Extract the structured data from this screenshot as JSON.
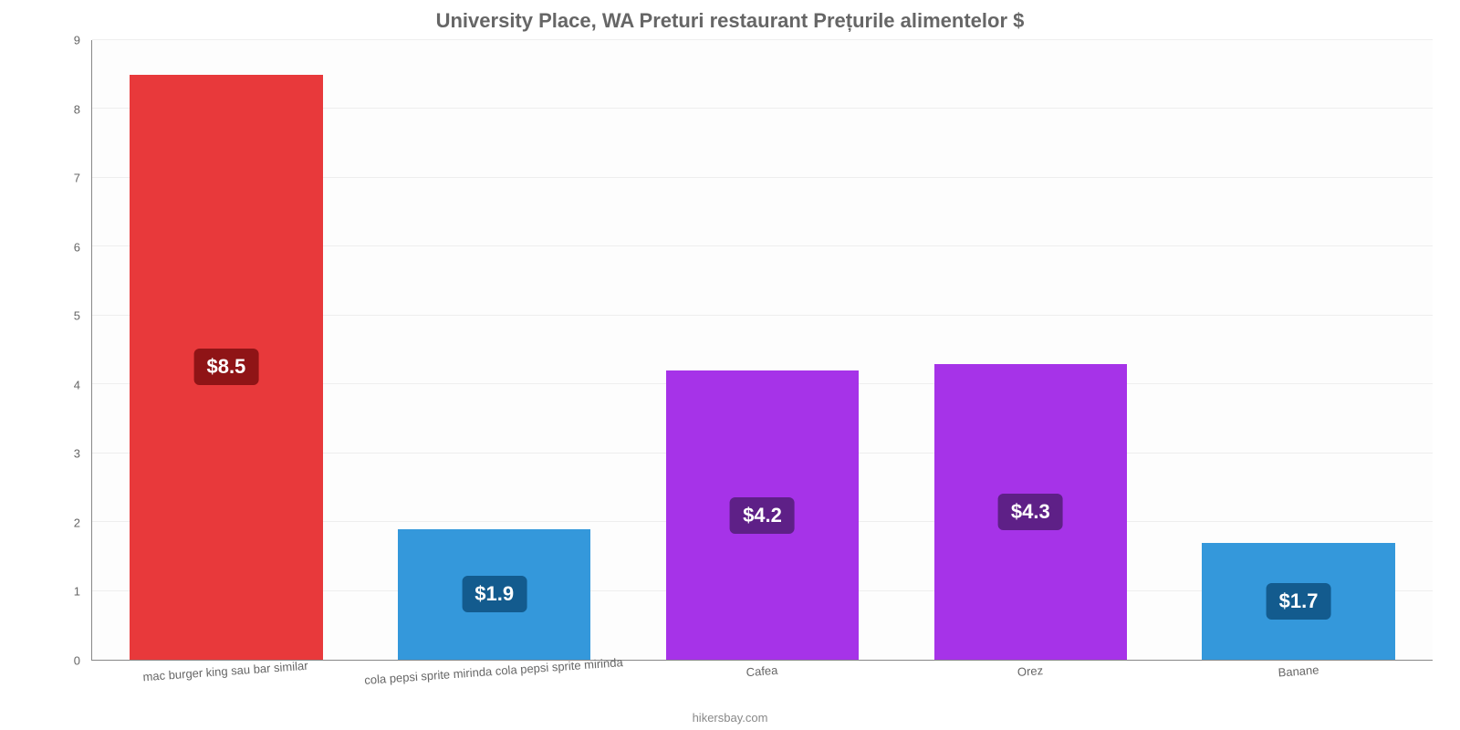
{
  "chart": {
    "type": "bar",
    "title": "University Place, WA Preturi restaurant Prețurile alimentelor $",
    "title_fontsize": 22,
    "title_color": "#666666",
    "background_color": "#fdfdfd",
    "grid_color": "#eeeeee",
    "axis_color": "#888888",
    "categories": [
      "mac burger king sau bar similar",
      "cola pepsi sprite mirinda cola pepsi sprite mirinda",
      "Cafea",
      "Orez",
      "Banane"
    ],
    "values": [
      8.5,
      1.9,
      4.2,
      4.3,
      1.7
    ],
    "value_labels": [
      "$8.5",
      "$1.9",
      "$4.2",
      "$4.3",
      "$1.7"
    ],
    "bar_colors": [
      "#e8393b",
      "#3498db",
      "#a633e8",
      "#a633e8",
      "#3498db"
    ],
    "label_bg_colors": [
      "#8f1416",
      "#135b8e",
      "#5e2087",
      "#5e2087",
      "#135b8e"
    ],
    "label_text_color": "#ffffff",
    "label_fontsize": 22,
    "ylim": [
      0,
      9
    ],
    "yticks": [
      0,
      1,
      2,
      3,
      4,
      5,
      6,
      7,
      8,
      9
    ],
    "ytick_fontsize": 13,
    "xtick_fontsize": 13,
    "xtick_rotation_deg": -4,
    "bar_width_pct": 72
  },
  "attribution": "hikersbay.com"
}
